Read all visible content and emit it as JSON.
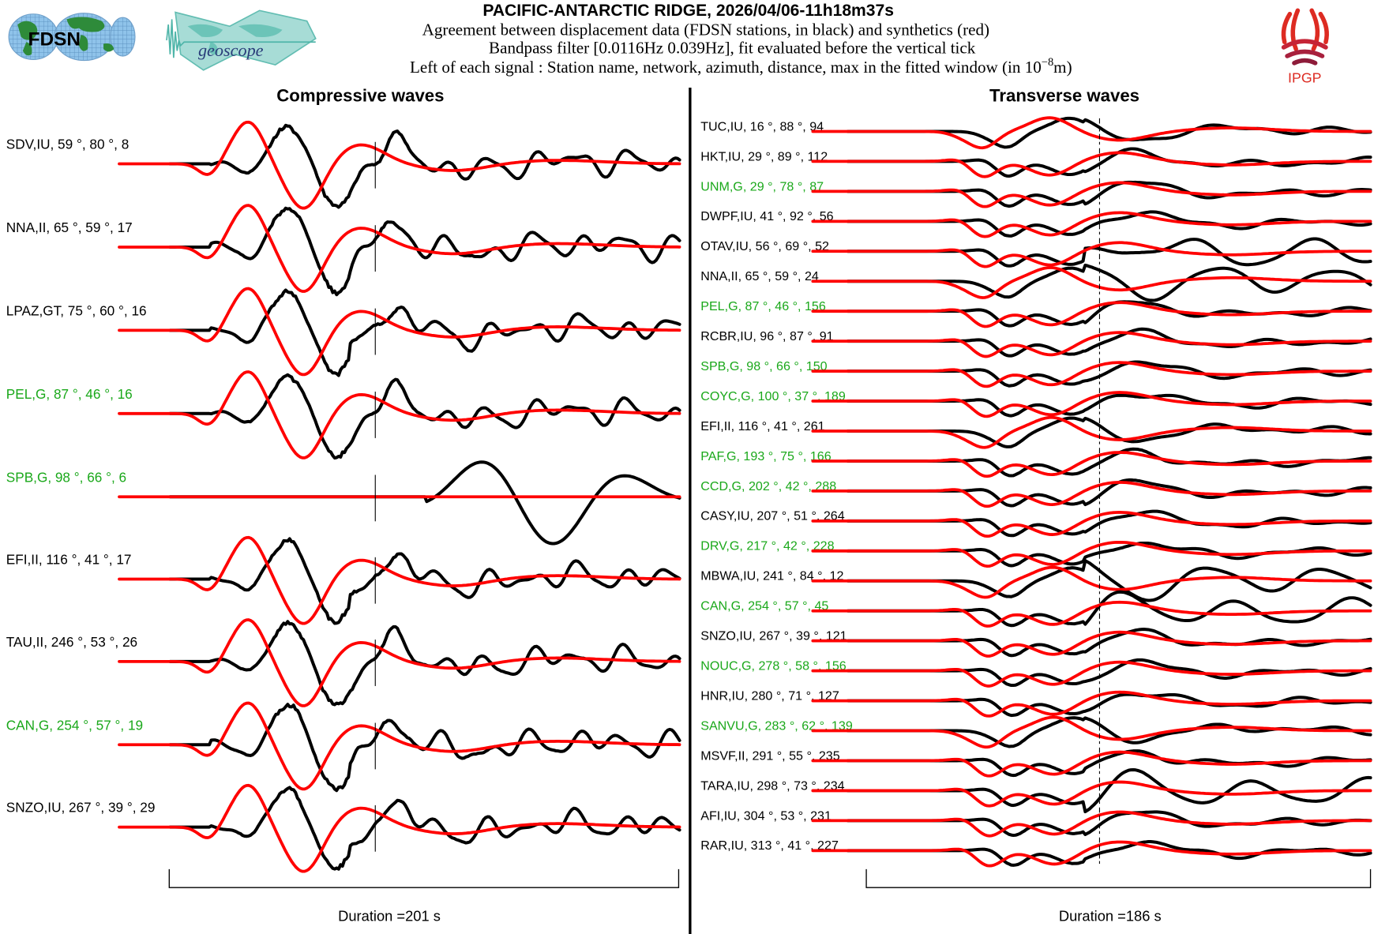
{
  "header": {
    "title": "PACIFIC-ANTARCTIC RIDGE, 2026/04/06-11h18m37s",
    "line1": "Agreement between displacement data (FDSN stations, in black) and synthetics (red)",
    "line2": "Bandpass filter [0.0116Hz 0.039Hz], fit evaluated before the vertical tick",
    "line3_prefix": "Left of each signal : Station name, network, azimuth, distance, max in the fitted window (in 10",
    "line3_exp": "−8",
    "line3_suffix": "m)",
    "logos": {
      "fdsn": "FDSN",
      "geoscope": "geoscope",
      "ipgp": "IPGP"
    }
  },
  "colors": {
    "data": "#000000",
    "synthetic": "#ff0000",
    "geoscope_station": "#1aa81a",
    "other_station": "#000000"
  },
  "chart_data": [
    {
      "type": "line",
      "title": "Compressive waves",
      "xlabel": "Duration =201 s",
      "duration_s": 201,
      "series_legend": [
        "data (black)",
        "synthetics (red)"
      ],
      "stations": [
        {
          "label": "SDV,IU, 59 °, 80 °, 8",
          "name": "SDV",
          "network": "IU",
          "azimuth": 59,
          "distance": 80,
          "max": 8,
          "geoscope": false
        },
        {
          "label": "NNA,II, 65 °, 59 °, 17",
          "name": "NNA",
          "network": "II",
          "azimuth": 65,
          "distance": 59,
          "max": 17,
          "geoscope": false
        },
        {
          "label": "LPAZ,GT, 75 °, 60 °, 16",
          "name": "LPAZ",
          "network": "GT",
          "azimuth": 75,
          "distance": 60,
          "max": 16,
          "geoscope": false
        },
        {
          "label": "PEL,G, 87 °, 46 °, 16",
          "name": "PEL",
          "network": "G",
          "azimuth": 87,
          "distance": 46,
          "max": 16,
          "geoscope": true
        },
        {
          "label": "SPB,G, 98 °, 66 °, 6",
          "name": "SPB",
          "network": "G",
          "azimuth": 98,
          "distance": 66,
          "max": 6,
          "geoscope": true
        },
        {
          "label": "EFI,II, 116 °, 41 °, 17",
          "name": "EFI",
          "network": "II",
          "azimuth": 116,
          "distance": 41,
          "max": 17,
          "geoscope": false
        },
        {
          "label": "TAU,II, 246 °, 53 °, 26",
          "name": "TAU",
          "network": "II",
          "azimuth": 246,
          "distance": 53,
          "max": 26,
          "geoscope": false
        },
        {
          "label": "CAN,G, 254 °, 57 °, 19",
          "name": "CAN",
          "network": "G",
          "azimuth": 254,
          "distance": 57,
          "max": 19,
          "geoscope": true
        },
        {
          "label": "SNZO,IU, 267 °, 39 °, 29",
          "name": "SNZO",
          "network": "IU",
          "azimuth": 267,
          "distance": 39,
          "max": 29,
          "geoscope": false
        }
      ]
    },
    {
      "type": "line",
      "title": "Transverse waves",
      "xlabel": "Duration =186 s",
      "duration_s": 186,
      "series_legend": [
        "data (black)",
        "synthetics (red)"
      ],
      "stations": [
        {
          "label": "TUC,IU, 16 °, 88 °, 94",
          "name": "TUC",
          "network": "IU",
          "azimuth": 16,
          "distance": 88,
          "max": 94,
          "geoscope": false
        },
        {
          "label": "HKT,IU, 29 °, 89 °, 112",
          "name": "HKT",
          "network": "IU",
          "azimuth": 29,
          "distance": 89,
          "max": 112,
          "geoscope": false
        },
        {
          "label": "UNM,G, 29 °, 78 °, 87",
          "name": "UNM",
          "network": "G",
          "azimuth": 29,
          "distance": 78,
          "max": 87,
          "geoscope": true
        },
        {
          "label": "DWPF,IU, 41 °, 92 °, 56",
          "name": "DWPF",
          "network": "IU",
          "azimuth": 41,
          "distance": 92,
          "max": 56,
          "geoscope": false
        },
        {
          "label": "OTAV,IU, 56 °, 69 °, 52",
          "name": "OTAV",
          "network": "IU",
          "azimuth": 56,
          "distance": 69,
          "max": 52,
          "geoscope": false
        },
        {
          "label": "NNA,II, 65 °, 59 °, 24",
          "name": "NNA",
          "network": "II",
          "azimuth": 65,
          "distance": 59,
          "max": 24,
          "geoscope": false
        },
        {
          "label": "PEL,G, 87 °, 46 °, 156",
          "name": "PEL",
          "network": "G",
          "azimuth": 87,
          "distance": 46,
          "max": 156,
          "geoscope": true
        },
        {
          "label": "RCBR,IU, 96 °, 87 °, 91",
          "name": "RCBR",
          "network": "IU",
          "azimuth": 96,
          "distance": 87,
          "max": 91,
          "geoscope": false
        },
        {
          "label": "SPB,G, 98 °, 66 °, 150",
          "name": "SPB",
          "network": "G",
          "azimuth": 98,
          "distance": 66,
          "max": 150,
          "geoscope": true
        },
        {
          "label": "COYC,G, 100 °, 37 °, 189",
          "name": "COYC",
          "network": "G",
          "azimuth": 100,
          "distance": 37,
          "max": 189,
          "geoscope": true
        },
        {
          "label": "EFI,II, 116 °, 41 °, 261",
          "name": "EFI",
          "network": "II",
          "azimuth": 116,
          "distance": 41,
          "max": 261,
          "geoscope": false
        },
        {
          "label": "PAF,G, 193 °, 75 °, 166",
          "name": "PAF",
          "network": "G",
          "azimuth": 193,
          "distance": 75,
          "max": 166,
          "geoscope": true
        },
        {
          "label": "CCD,G, 202 °, 42 °, 288",
          "name": "CCD",
          "network": "G",
          "azimuth": 202,
          "distance": 42,
          "max": 288,
          "geoscope": true
        },
        {
          "label": "CASY,IU, 207 °, 51 °, 264",
          "name": "CASY",
          "network": "IU",
          "azimuth": 207,
          "distance": 51,
          "max": 264,
          "geoscope": false
        },
        {
          "label": "DRV,G, 217 °, 42 °, 228",
          "name": "DRV",
          "network": "G",
          "azimuth": 217,
          "distance": 42,
          "max": 228,
          "geoscope": true
        },
        {
          "label": "MBWA,IU, 241 °, 84 °, 12",
          "name": "MBWA",
          "network": "IU",
          "azimuth": 241,
          "distance": 84,
          "max": 12,
          "geoscope": false
        },
        {
          "label": "CAN,G, 254 °, 57 °, 45",
          "name": "CAN",
          "network": "G",
          "azimuth": 254,
          "distance": 57,
          "max": 45,
          "geoscope": true
        },
        {
          "label": "SNZO,IU, 267 °, 39 °, 121",
          "name": "SNZO",
          "network": "IU",
          "azimuth": 267,
          "distance": 39,
          "max": 121,
          "geoscope": false
        },
        {
          "label": "NOUC,G, 278 °, 58 °, 156",
          "name": "NOUC",
          "network": "G",
          "azimuth": 278,
          "distance": 58,
          "max": 156,
          "geoscope": true
        },
        {
          "label": "HNR,IU, 280 °, 71 °, 127",
          "name": "HNR",
          "network": "IU",
          "azimuth": 280,
          "distance": 71,
          "max": 127,
          "geoscope": false
        },
        {
          "label": "SANVU,G, 283 °, 62 °, 139",
          "name": "SANVU",
          "network": "G",
          "azimuth": 283,
          "distance": 62,
          "max": 139,
          "geoscope": true
        },
        {
          "label": "MSVF,II, 291 °, 55 °, 235",
          "name": "MSVF",
          "network": "II",
          "azimuth": 291,
          "distance": 55,
          "max": 235,
          "geoscope": false
        },
        {
          "label": "TARA,IU, 298 °, 73 °, 234",
          "name": "TARA",
          "network": "IU",
          "azimuth": 298,
          "distance": 73,
          "max": 234,
          "geoscope": false
        },
        {
          "label": "AFI,IU, 304 °, 53 °, 231",
          "name": "AFI",
          "network": "IU",
          "azimuth": 304,
          "distance": 53,
          "max": 231,
          "geoscope": false
        },
        {
          "label": "RAR,IU, 313 °, 41 °, 227",
          "name": "RAR",
          "network": "IU",
          "azimuth": 313,
          "distance": 41,
          "max": 227,
          "geoscope": false
        }
      ]
    }
  ]
}
